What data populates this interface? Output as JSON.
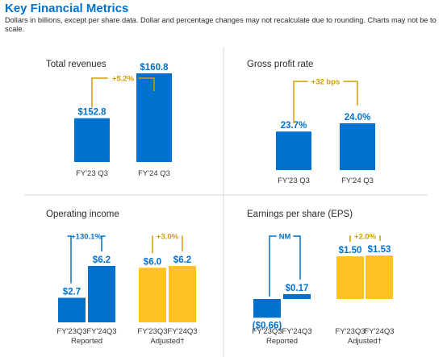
{
  "header": {
    "title": "Key Financial Metrics",
    "subtitle": "Dollars in billions, except per share data.  Dollar and percentage changes may not recalculate due to rounding. Charts may not be to scale."
  },
  "colors": {
    "blue": "#0071ce",
    "yellow": "#ffc220",
    "yellow_dark": "#d39c00"
  },
  "chart_data": [
    {
      "type": "bar",
      "title": "Total revenues",
      "categories": [
        "FY'23 Q3",
        "FY'24 Q3"
      ],
      "values": [
        152.8,
        160.8
      ],
      "value_labels": [
        "$152.8",
        "$160.8"
      ],
      "change_label": "+5.2%"
    },
    {
      "type": "bar",
      "title": "Gross profit rate",
      "categories": [
        "FY'23 Q3",
        "FY'24 Q3"
      ],
      "values": [
        23.7,
        24.0
      ],
      "value_labels": [
        "23.7%",
        "24.0%"
      ],
      "change_label": "+32 bps"
    },
    {
      "type": "bar",
      "title": "Operating income",
      "groups": [
        {
          "label": "Reported",
          "categories": [
            "FY'23Q3",
            "FY'24Q3"
          ],
          "values": [
            2.7,
            6.2
          ],
          "value_labels": [
            "$2.7",
            "$6.2"
          ],
          "change_label": "+130.1%"
        },
        {
          "label": "Adjusted†",
          "categories": [
            "FY'23Q3",
            "FY'24Q3"
          ],
          "values": [
            6.0,
            6.2
          ],
          "value_labels": [
            "$6.0",
            "$6.2"
          ],
          "change_label": "+3.0%"
        }
      ]
    },
    {
      "type": "bar",
      "title": "Earnings per share (EPS)",
      "groups": [
        {
          "label": "Reported",
          "categories": [
            "FY'23Q3",
            "FY'24Q3"
          ],
          "values": [
            -0.66,
            0.17
          ],
          "value_labels": [
            "($0.66)",
            "$0.17"
          ],
          "change_label": "NM"
        },
        {
          "label": "Adjusted†",
          "categories": [
            "FY'23Q3",
            "FY'24Q3"
          ],
          "values": [
            1.5,
            1.53
          ],
          "value_labels": [
            "$1.50",
            "$1.53"
          ],
          "change_label": "+2.0%"
        }
      ]
    }
  ]
}
